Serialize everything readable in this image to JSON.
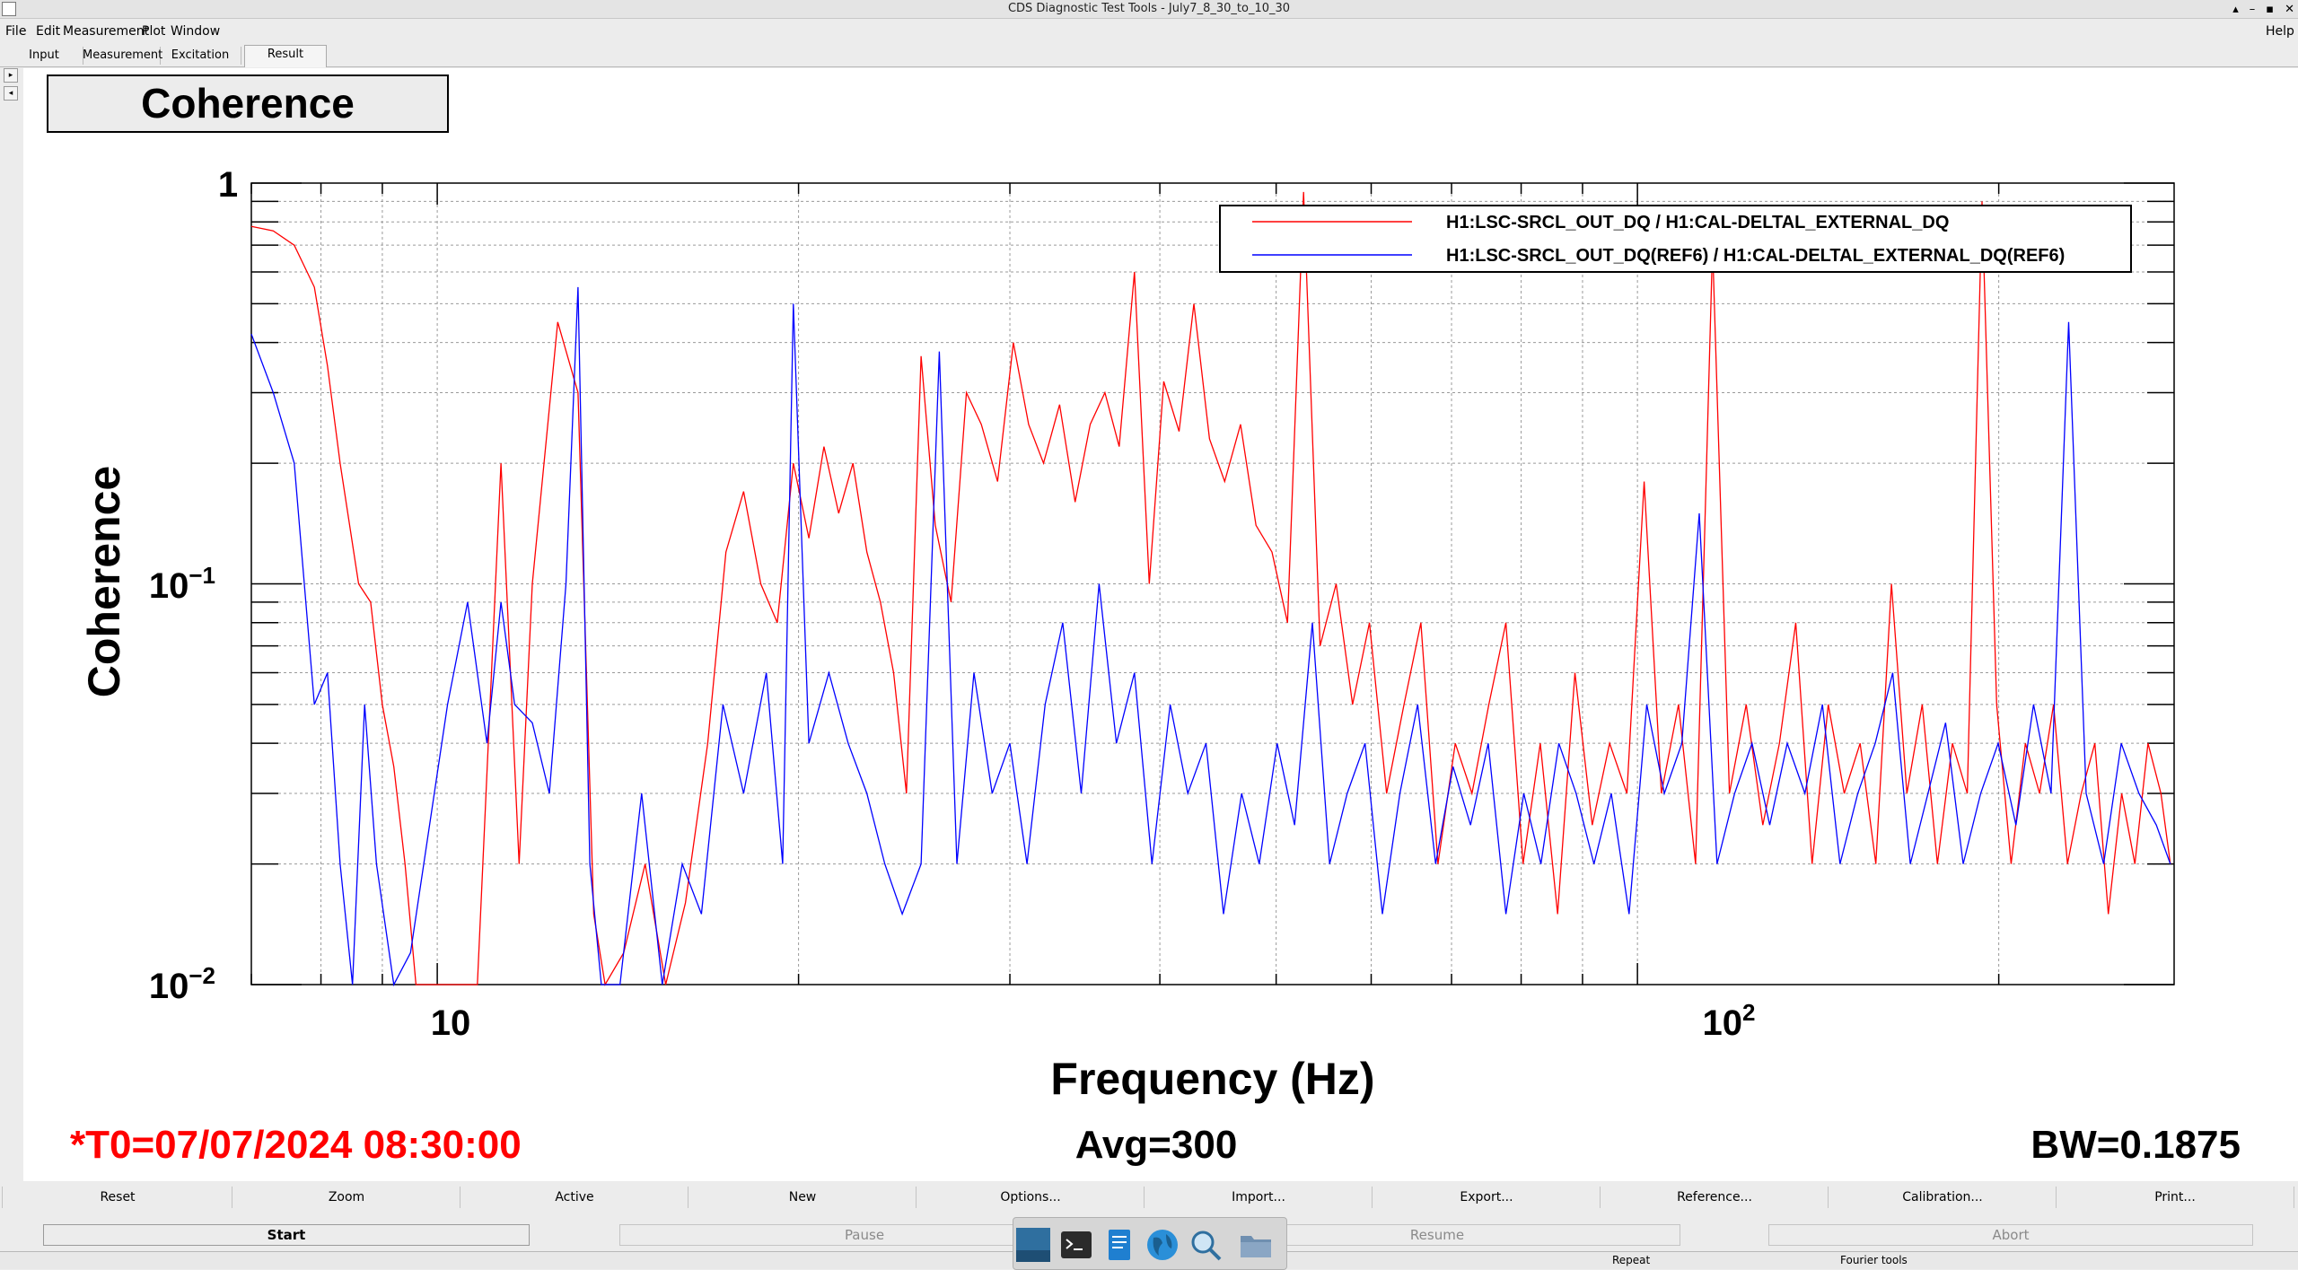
{
  "window": {
    "title": "CDS Diagnostic Test Tools - July7_8_30_to_10_30",
    "controls": [
      "▴",
      "–",
      "▪",
      "✕"
    ]
  },
  "menu": {
    "file": "File",
    "edit": "Edit",
    "measurement": "Measurement",
    "plot": "Plot",
    "window": "Window",
    "help": "Help"
  },
  "tabs": {
    "input": "Input",
    "measurement": "Measurement",
    "excitation": "Excitation",
    "result": "Result"
  },
  "plot": {
    "panel_title": "Coherence",
    "footer": {
      "t0": "*T0=07/07/2024 08:30:00",
      "avg": "Avg=300",
      "bw": "BW=0.1875"
    },
    "ticks": {
      "y_top": "1",
      "y_mid_base": "10",
      "y_mid_exp": "−1",
      "y_bot_base": "10",
      "y_bot_exp": "−2",
      "x_10": "10",
      "x_100_base": "10",
      "x_100_exp": "2"
    }
  },
  "chart_data": {
    "type": "line",
    "xlabel": "Frequency (Hz)",
    "ylabel": "Coherence",
    "xscale": "log",
    "yscale": "log",
    "xlim": [
      7,
      280
    ],
    "ylim": [
      0.01,
      1
    ],
    "grid": true,
    "legend_position": "top-right",
    "series": [
      {
        "name": "H1:LSC-SRCL_OUT_DQ / H1:CAL-DELTAL_EXTERNAL_DQ",
        "color": "#ff0000",
        "x": [
          7.0,
          7.3,
          7.6,
          7.9,
          8.1,
          8.3,
          8.6,
          8.8,
          9.0,
          9.2,
          9.4,
          9.6,
          10.8,
          11.3,
          11.7,
          12.0,
          12.6,
          13.1,
          13.5,
          13.8,
          14.3,
          14.9,
          15.5,
          16.1,
          16.8,
          17.4,
          18.0,
          18.6,
          19.2,
          19.8,
          20.4,
          21.0,
          21.6,
          22.2,
          22.8,
          23.4,
          24.0,
          24.6,
          25.3,
          26.0,
          26.8,
          27.6,
          28.4,
          29.3,
          30.2,
          31.1,
          32.0,
          33.0,
          34.0,
          35.0,
          36.0,
          37.0,
          38.1,
          39.2,
          40.3,
          41.5,
          42.7,
          44.0,
          45.3,
          46.7,
          48.1,
          49.6,
          51.1,
          52.7,
          54.4,
          56.1,
          57.9,
          59.8,
          61.8,
          63.9,
          66.0,
          68.2,
          70.5,
          72.8,
          75.2,
          77.7,
          80.3,
          83.0,
          85.8,
          88.7,
          91.7,
          94.8,
          98.0,
          101.3,
          104.7,
          108.2,
          111.8,
          115.5,
          119.3,
          123.2,
          127.2,
          131.3,
          135.5,
          139.8,
          144.2,
          148.7,
          153.3,
          158.0,
          162.8,
          167.7,
          172.7,
          177.8,
          183.0,
          188.3,
          193.7,
          199.2,
          204.8,
          210.5,
          216.3,
          222.2,
          228.2,
          234.3,
          240.5,
          246.8,
          253.2,
          259.7,
          266.3,
          273.0,
          278.0
        ],
        "y": [
          0.78,
          0.76,
          0.7,
          0.55,
          0.35,
          0.2,
          0.1,
          0.09,
          0.05,
          0.035,
          0.02,
          0.01,
          0.01,
          0.2,
          0.02,
          0.1,
          0.45,
          0.3,
          0.015,
          0.01,
          0.012,
          0.02,
          0.01,
          0.016,
          0.04,
          0.12,
          0.17,
          0.1,
          0.08,
          0.2,
          0.13,
          0.22,
          0.15,
          0.2,
          0.12,
          0.09,
          0.06,
          0.03,
          0.37,
          0.14,
          0.09,
          0.3,
          0.25,
          0.18,
          0.4,
          0.25,
          0.2,
          0.28,
          0.16,
          0.25,
          0.3,
          0.22,
          0.6,
          0.1,
          0.32,
          0.24,
          0.5,
          0.23,
          0.18,
          0.25,
          0.14,
          0.12,
          0.08,
          0.95,
          0.07,
          0.1,
          0.05,
          0.08,
          0.03,
          0.05,
          0.08,
          0.02,
          0.04,
          0.03,
          0.05,
          0.08,
          0.02,
          0.04,
          0.015,
          0.06,
          0.025,
          0.04,
          0.03,
          0.18,
          0.03,
          0.05,
          0.02,
          0.7,
          0.03,
          0.05,
          0.025,
          0.04,
          0.08,
          0.02,
          0.05,
          0.03,
          0.04,
          0.02,
          0.1,
          0.03,
          0.05,
          0.02,
          0.04,
          0.03,
          0.9,
          0.05,
          0.02,
          0.04,
          0.03,
          0.05,
          0.02,
          0.03,
          0.04,
          0.015,
          0.03,
          0.02,
          0.04,
          0.03,
          0.02
        ]
      },
      {
        "name": "H1:LSC-SRCL_OUT_DQ(REF6) / H1:CAL-DELTAL_EXTERNAL_DQ(REF6)",
        "color": "#0000ff",
        "x": [
          7.0,
          7.3,
          7.6,
          7.9,
          8.1,
          8.3,
          8.5,
          8.7,
          8.9,
          9.2,
          9.5,
          10.2,
          10.6,
          11.0,
          11.3,
          11.6,
          12.0,
          12.4,
          12.8,
          13.1,
          13.4,
          13.7,
          14.2,
          14.8,
          15.4,
          16.0,
          16.6,
          17.3,
          18.0,
          18.8,
          19.4,
          19.8,
          20.4,
          21.2,
          22.0,
          22.8,
          23.6,
          24.4,
          25.3,
          26.2,
          27.1,
          28.0,
          29.0,
          30.0,
          31.0,
          32.1,
          33.2,
          34.4,
          35.6,
          36.8,
          38.1,
          39.4,
          40.8,
          42.2,
          43.7,
          45.2,
          46.8,
          48.4,
          50.1,
          51.8,
          53.6,
          55.4,
          57.3,
          59.3,
          61.3,
          63.4,
          65.6,
          67.9,
          70.2,
          72.6,
          75.1,
          77.7,
          80.4,
          83.1,
          86.0,
          88.9,
          92.0,
          95.1,
          98.4,
          101.8,
          105.3,
          108.9,
          112.6,
          116.5,
          120.5,
          124.6,
          128.9,
          133.3,
          137.9,
          142.6,
          147.5,
          152.6,
          157.8,
          163.2,
          168.8,
          174.6,
          180.6,
          186.8,
          193.2,
          199.8,
          206.7,
          213.8,
          221.1,
          228.7,
          236.5,
          244.6,
          253.0,
          261.7,
          270.6,
          278.0
        ],
        "y": [
          0.42,
          0.3,
          0.2,
          0.05,
          0.06,
          0.02,
          0.01,
          0.05,
          0.02,
          0.01,
          0.012,
          0.05,
          0.09,
          0.04,
          0.09,
          0.05,
          0.045,
          0.03,
          0.1,
          0.55,
          0.02,
          0.01,
          0.01,
          0.03,
          0.01,
          0.02,
          0.015,
          0.05,
          0.03,
          0.06,
          0.02,
          0.5,
          0.04,
          0.06,
          0.04,
          0.03,
          0.02,
          0.015,
          0.02,
          0.38,
          0.02,
          0.06,
          0.03,
          0.04,
          0.02,
          0.05,
          0.08,
          0.03,
          0.1,
          0.04,
          0.06,
          0.02,
          0.05,
          0.03,
          0.04,
          0.015,
          0.03,
          0.02,
          0.04,
          0.025,
          0.08,
          0.02,
          0.03,
          0.04,
          0.015,
          0.03,
          0.05,
          0.02,
          0.035,
          0.025,
          0.04,
          0.015,
          0.03,
          0.02,
          0.04,
          0.03,
          0.02,
          0.03,
          0.015,
          0.05,
          0.03,
          0.04,
          0.15,
          0.02,
          0.03,
          0.04,
          0.025,
          0.04,
          0.03,
          0.05,
          0.02,
          0.03,
          0.04,
          0.06,
          0.02,
          0.03,
          0.045,
          0.02,
          0.03,
          0.04,
          0.025,
          0.05,
          0.03,
          0.45,
          0.03,
          0.02,
          0.04,
          0.03,
          0.025,
          0.02
        ]
      }
    ]
  },
  "buttons": {
    "reset": "Reset",
    "zoom": "Zoom",
    "active": "Active",
    "new": "New",
    "options": "Options...",
    "import": "Import...",
    "export": "Export...",
    "reference": "Reference...",
    "calibration": "Calibration...",
    "print": "Print..."
  },
  "controls": {
    "start": "Start",
    "pause": "Pause",
    "resume": "Resume",
    "abort": "Abort"
  },
  "status": {
    "repeat": "Repeat",
    "mode": "Fourier tools"
  },
  "taskbar": {
    "icons": [
      "desktop-icon",
      "terminal-icon",
      "text-editor-icon",
      "browser-icon",
      "search-icon",
      "folder-icon"
    ]
  }
}
